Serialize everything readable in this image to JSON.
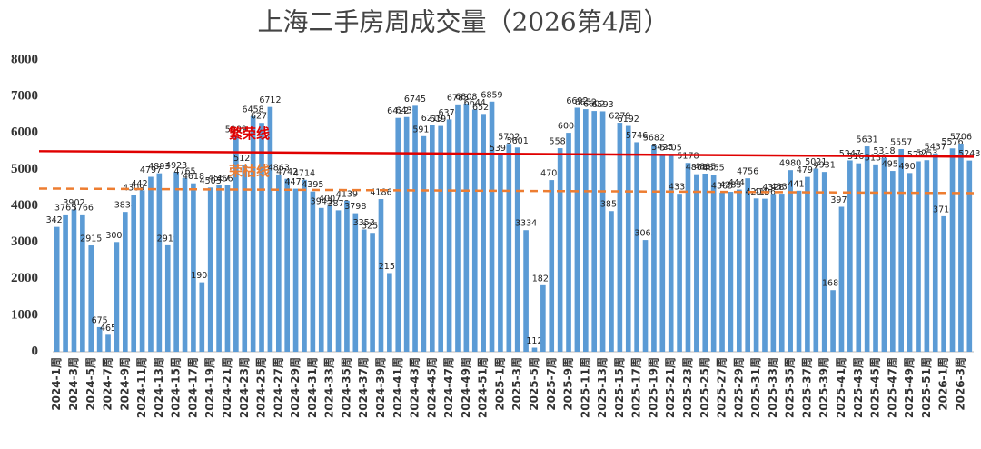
{
  "chart_data": {
    "type": "bar",
    "title": "上海二手房周成交量（2026第4周）",
    "categories": [
      "2024-1周",
      null,
      "2024-3周",
      null,
      "2024-5周",
      null,
      "2024-7周",
      null,
      "2024-9周",
      null,
      "2024-11周",
      null,
      "2024-13周",
      null,
      "2024-15周",
      null,
      "2024-17周",
      null,
      "2024-19周",
      null,
      "2024-21周",
      null,
      "2024-23周",
      null,
      "2024-25周",
      null,
      "2024-27周",
      null,
      "2024-29周",
      null,
      "2024-31周",
      null,
      "2024-33周",
      null,
      "2024-35周",
      null,
      "2024-37周",
      null,
      "2024-39周",
      null,
      "2024-41周",
      null,
      "2024-43周",
      null,
      "2024-45周",
      null,
      "2024-47周",
      null,
      "2024-49周",
      null,
      "2024-51周",
      null,
      "2025-1周",
      null,
      "2025-3周",
      null,
      "2025-5周",
      null,
      "2025-7周",
      null,
      "2025-9周",
      null,
      "2025-11周",
      null,
      "2025-13周",
      null,
      "2025-15周",
      null,
      "2025-17周",
      null,
      "2025-19周",
      null,
      "2025-21周",
      null,
      "2025-23周",
      null,
      "2025-25周",
      null,
      "2025-27周",
      null,
      "2025-29周",
      null,
      "2025-31周",
      null,
      "2025-33周",
      null,
      "2025-35周",
      null,
      "2025-37周",
      null,
      "2025-39周",
      null,
      "2025-41周",
      null,
      "2025-43周",
      null,
      "2025-45周",
      null,
      "2025-47周",
      null,
      "2025-49周",
      null,
      "2025-51周",
      null,
      "2026-1周",
      null,
      "2026-3周",
      null
    ],
    "values": [
      3423,
      3765,
      3902,
      3766,
      2915,
      675,
      465,
      3008,
      3834,
      4309,
      4427,
      4797,
      4893,
      2919,
      4923,
      4765,
      4618,
      1904,
      4503,
      4567,
      4561,
      5909,
      5120,
      6458,
      6275,
      6712,
      4863,
      4742,
      4471,
      4714,
      4395,
      3943,
      4007,
      3878,
      4139,
      3798,
      3353,
      3259,
      4186,
      2156,
      6412,
      6436,
      6745,
      5912,
      6219,
      6191,
      6370,
      6783,
      6808,
      6644,
      6521,
      6859,
      5393,
      5702,
      5601,
      3334,
      112,
      1823,
      4708,
      5581,
      6004,
      6692,
      6652,
      6602,
      6593,
      3857,
      6279,
      6192,
      5746,
      3063,
      5682,
      5425,
      5405,
      4332,
      5178,
      4868,
      4885,
      4855,
      4365,
      4385,
      4447,
      4756,
      4204,
      4196,
      4328,
      4335,
      4980,
      4416,
      4794,
      5021,
      4931,
      1689,
      3975,
      5247,
      5167,
      5631,
      5138,
      5318,
      4958,
      5557,
      4901,
      5221,
      5253,
      5437,
      3716,
      5576,
      5706,
      5243
    ],
    "color": "#5b9bd5",
    "ylim": [
      0,
      8000
    ],
    "yticks": [
      0,
      1000,
      2000,
      3000,
      4000,
      5000,
      6000,
      7000,
      8000
    ],
    "reference_lines": [
      {
        "label": "繁荣线",
        "values": [
          5500,
          5350
        ],
        "color": "#e00000",
        "style": "solid"
      },
      {
        "label": "荣枯线",
        "values": [
          4475,
          4350
        ],
        "color": "#ed7d31",
        "style": "dashed"
      }
    ]
  }
}
